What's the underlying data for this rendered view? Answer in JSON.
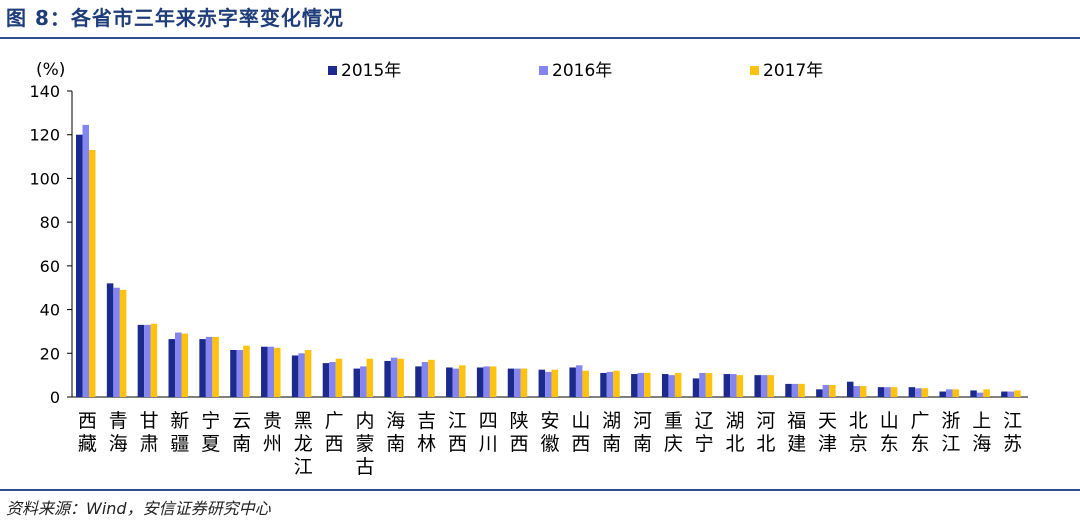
{
  "figure": {
    "title": "图 8：各省市三年来赤字率变化情况",
    "source": "资料来源：Wind，安信证券研究中心"
  },
  "colors": {
    "series_2015": "#1b2a8c",
    "series_2016": "#8585f2",
    "series_2017": "#ffc20e",
    "rule": "#2f4f8f",
    "title": "#1f3d7a"
  },
  "chart_data": {
    "type": "bar",
    "ylabel": "(%)",
    "ylim": [
      0,
      140
    ],
    "yticks": [
      "0",
      "20",
      "40",
      "60",
      "80",
      "100",
      "120",
      "140"
    ],
    "grid": false,
    "legend_position": "top",
    "categories": [
      "西藏",
      "青海",
      "甘肃",
      "新疆",
      "宁夏",
      "云南",
      "贵州",
      "黑龙江",
      "广西",
      "内蒙古",
      "海南",
      "吉林",
      "江西",
      "四川",
      "陕西",
      "安徽",
      "山西",
      "湖南",
      "河南",
      "重庆",
      "辽宁",
      "湖北",
      "河北",
      "福建",
      "天津",
      "北京",
      "山东",
      "广东",
      "浙江",
      "上海",
      "江苏"
    ],
    "series": [
      {
        "name": "2015年",
        "values": [
          120,
          52,
          33,
          26.5,
          26.5,
          21.5,
          23,
          19,
          15.5,
          13,
          16.5,
          14,
          13.5,
          13.5,
          13,
          12.5,
          13.5,
          11,
          10.5,
          10.5,
          8.5,
          10.5,
          10,
          6,
          3.5,
          7,
          4.5,
          4.5,
          2.5,
          3,
          2.5
        ]
      },
      {
        "name": "2016年",
        "values": [
          124.5,
          50,
          33,
          29.5,
          27.5,
          21.5,
          23,
          20,
          16,
          14,
          18,
          16,
          13,
          14,
          13,
          11.5,
          14.5,
          11.5,
          11,
          10,
          11,
          10.5,
          10,
          6,
          5.5,
          5,
          4.5,
          4,
          3.5,
          2,
          2.5
        ]
      },
      {
        "name": "2017年",
        "values": [
          113,
          49,
          33.5,
          29,
          27.5,
          23.5,
          22.5,
          21.5,
          17.5,
          17.5,
          17.5,
          17,
          14.5,
          14,
          13,
          12.5,
          12,
          12,
          11,
          11,
          11,
          10,
          10,
          6,
          5.5,
          5,
          4.5,
          4,
          3.5,
          3.5,
          3
        ]
      }
    ]
  }
}
